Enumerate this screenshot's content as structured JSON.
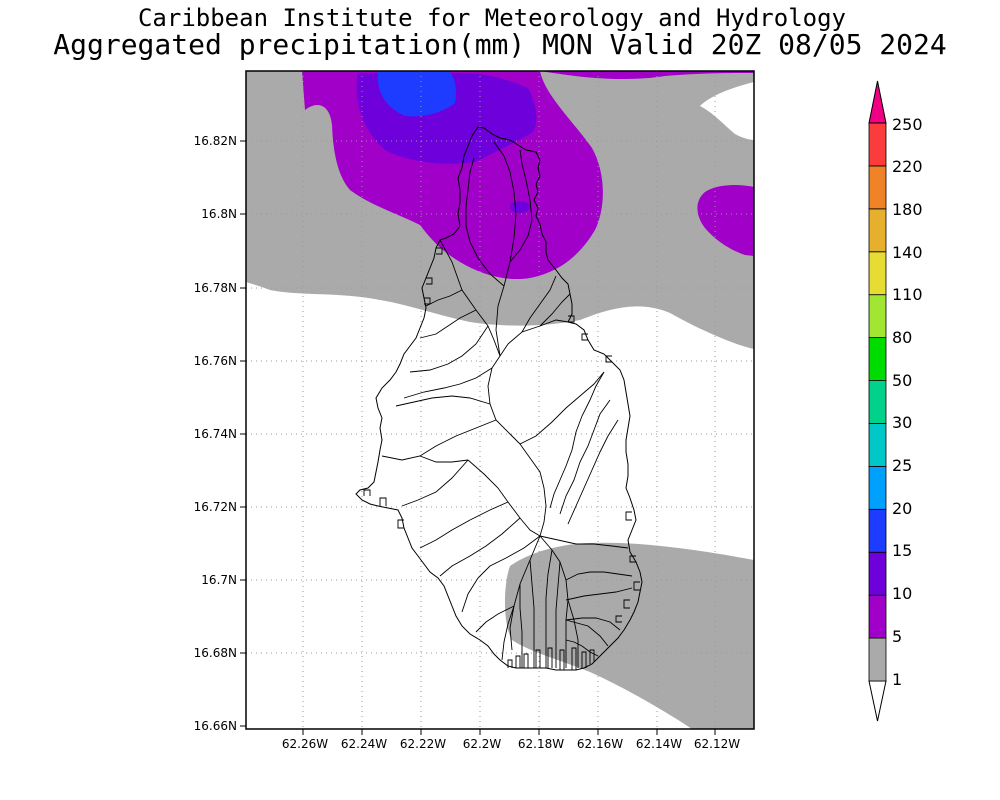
{
  "header": {
    "title": "Caribbean Institute for Meteorology and Hydrology",
    "subtitle": "Aggregated precipitation(mm) MON Valid 20Z 08/05 2024"
  },
  "map": {
    "lat_labels": [
      "16.82N",
      "16.8N",
      "16.78N",
      "16.76N",
      "16.74N",
      "16.72N",
      "16.7N",
      "16.68N",
      "16.66N"
    ],
    "lon_labels": [
      "62.26W",
      "62.24W",
      "62.22W",
      "62.2W",
      "62.18W",
      "62.16W",
      "62.14W",
      "62.12W"
    ],
    "grid": "dotted",
    "colors": {
      "grey": "#aaaaaa",
      "purple": "#a000c8",
      "violet": "#6e00dc",
      "blue": "#1e3cff"
    }
  },
  "legend": {
    "levels": [
      "1",
      "5",
      "10",
      "15",
      "20",
      "25",
      "30",
      "50",
      "80",
      "110",
      "140",
      "180",
      "220",
      "250"
    ],
    "bins": [
      {
        "color": "#ffffff"
      },
      {
        "color": "#aaaaaa"
      },
      {
        "color": "#a000c8"
      },
      {
        "color": "#6e00dc"
      },
      {
        "color": "#1e3cff"
      },
      {
        "color": "#00a0ff"
      },
      {
        "color": "#00c8c8"
      },
      {
        "color": "#00d28c"
      },
      {
        "color": "#00dc00"
      },
      {
        "color": "#a0e632"
      },
      {
        "color": "#e6dc32"
      },
      {
        "color": "#e6af2d"
      },
      {
        "color": "#f08228"
      },
      {
        "color": "#fa3c3c"
      },
      {
        "color": "#f00082"
      }
    ]
  }
}
